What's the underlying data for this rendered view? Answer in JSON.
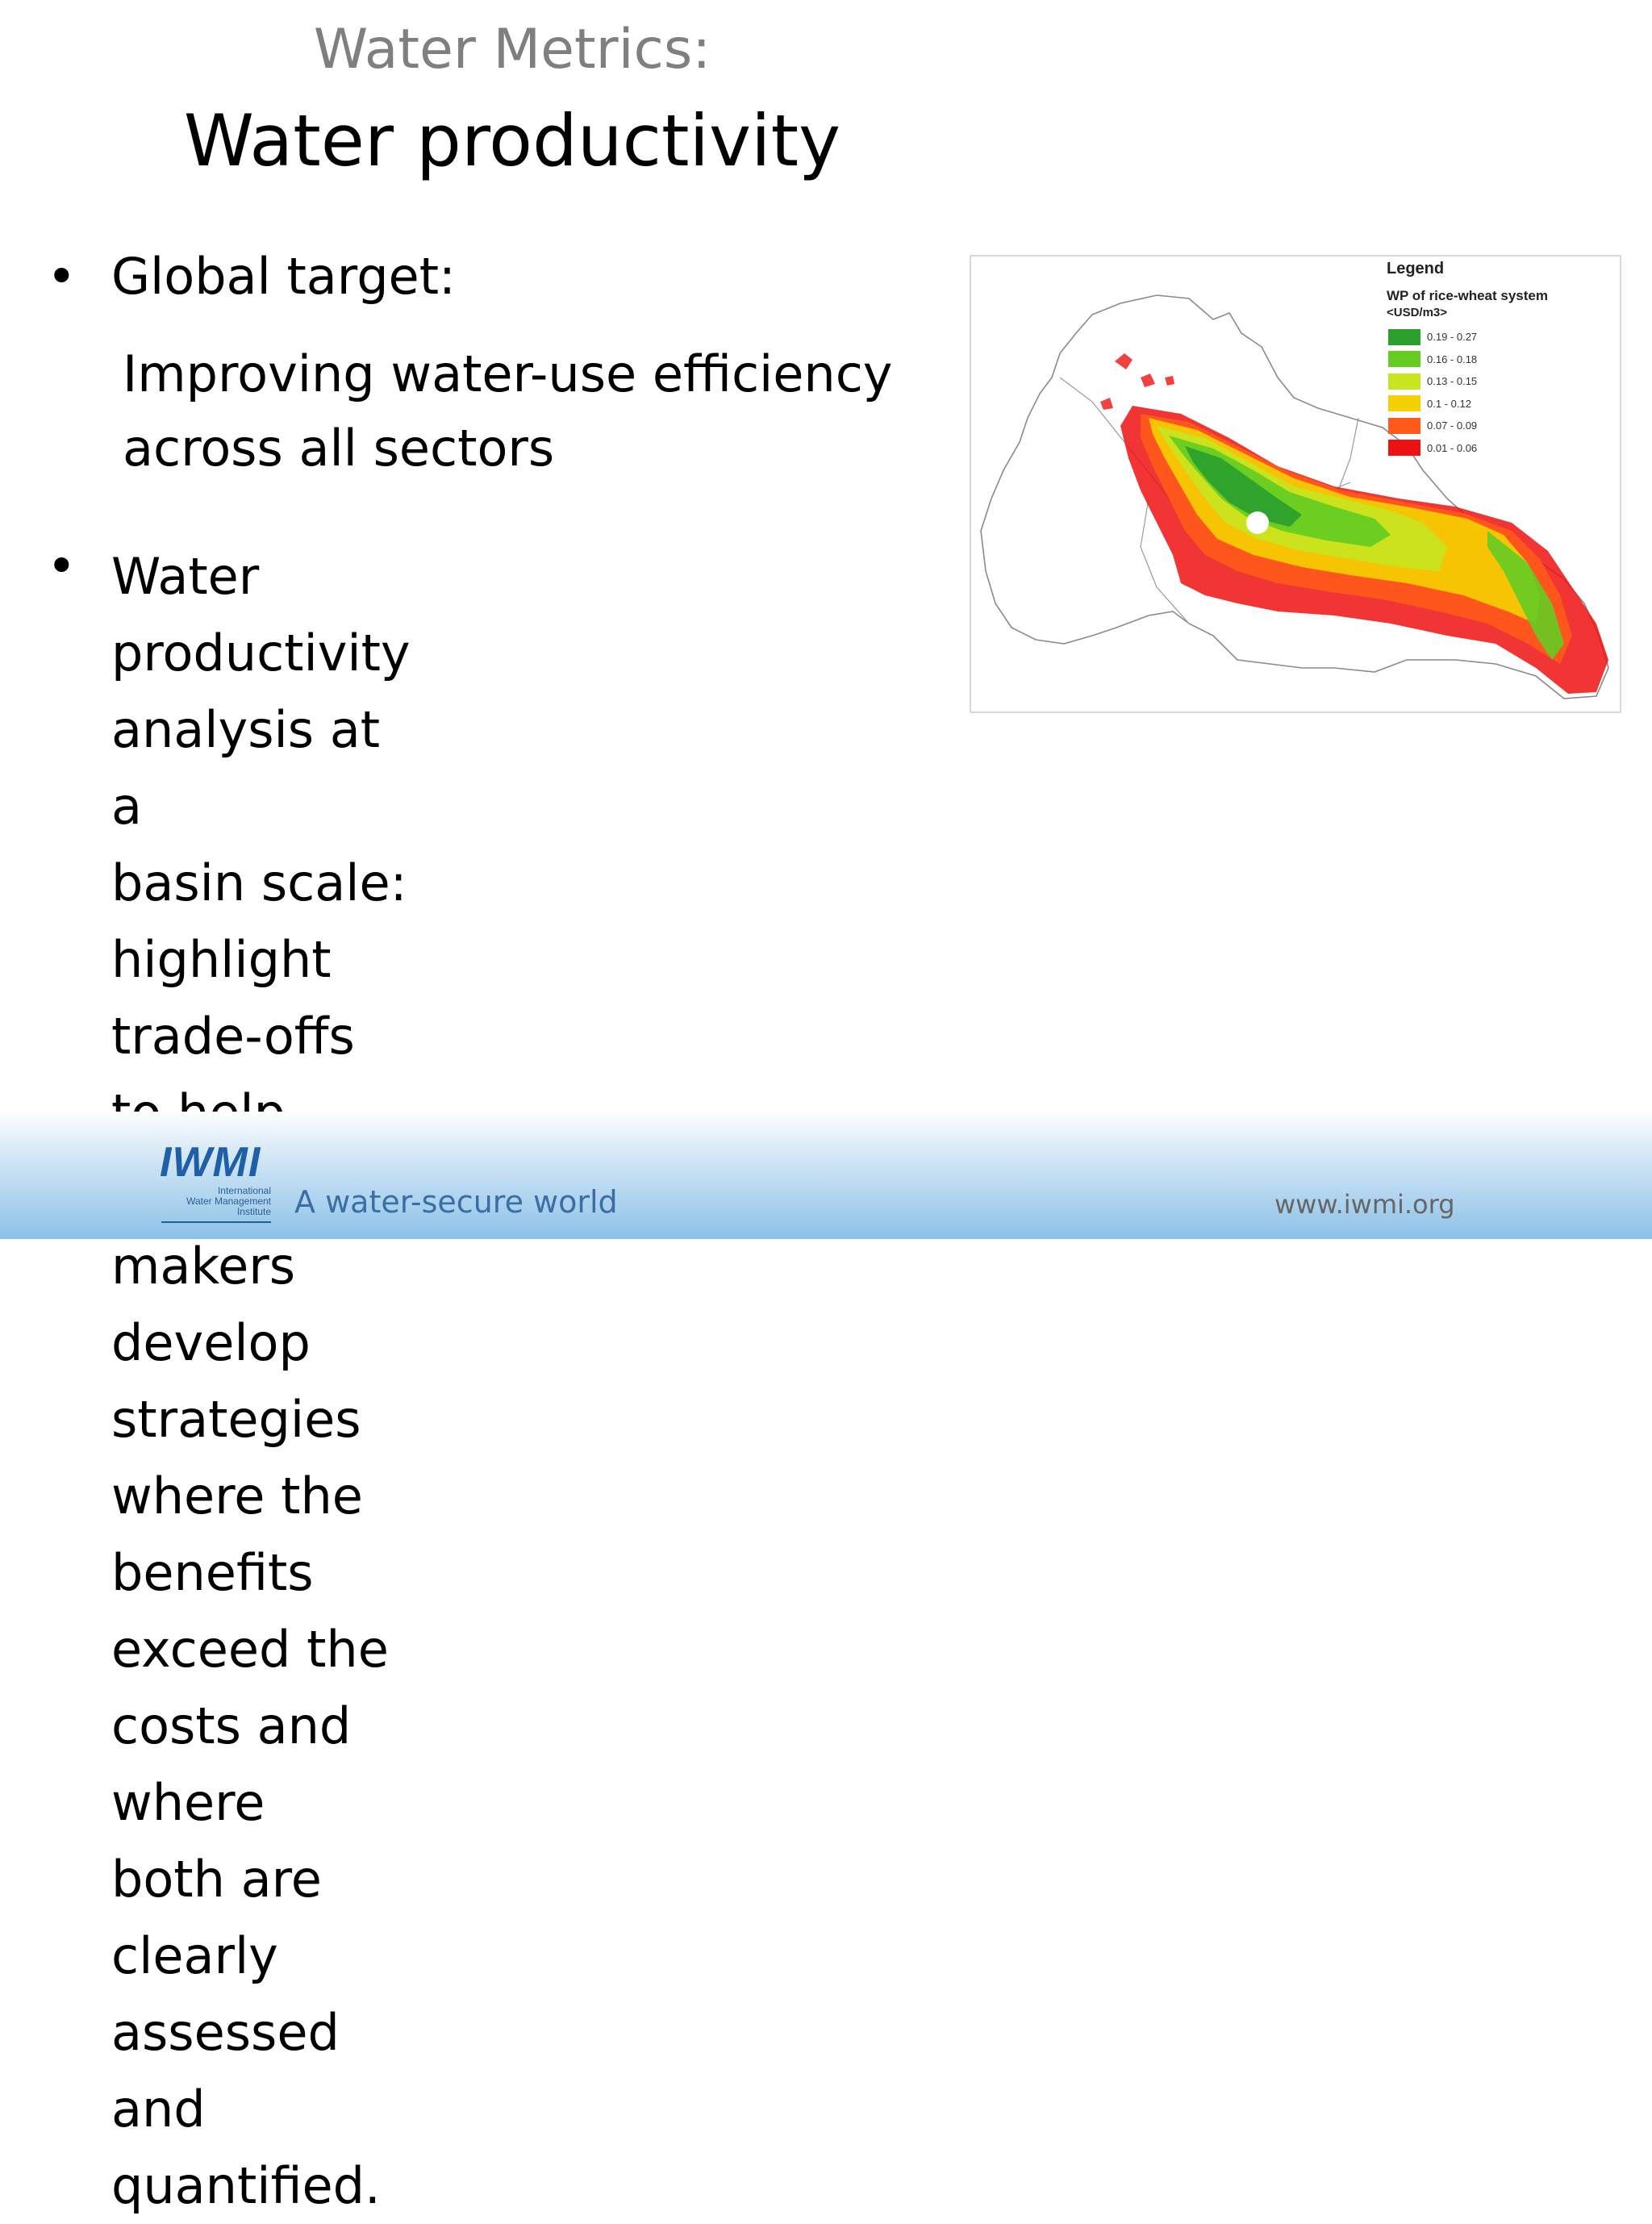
{
  "slide": {
    "supertitle": "Water Metrics:",
    "title": "Water productivity",
    "bullets": [
      {
        "text": "Global target:",
        "subtext": "Improving water-use efficiency\nacross all sectors"
      },
      {
        "text": "Water productivity analysis at a\nbasin scale:  highlight trade-offs\nto help decision makers develop\nstrategies where the benefits\nexceed the costs and where\nboth are clearly assessed and\nquantified."
      }
    ],
    "bullet_glyph": "•"
  },
  "map": {
    "legend": {
      "title": "Legend",
      "subtitle": "WP of rice-wheat system",
      "units": "<USD/m3>",
      "classes": [
        {
          "label": "0.19 - 0.27",
          "color": "#2ca02c"
        },
        {
          "label": "0.16 - 0.18",
          "color": "#66cc22"
        },
        {
          "label": "0.13 - 0.15",
          "color": "#c8e620"
        },
        {
          "label": "0.1 - 0.12",
          "color": "#f5d000"
        },
        {
          "label": "0.07 - 0.09",
          "color": "#ff5a1a"
        },
        {
          "label": "0.01 - 0.06",
          "color": "#ee1111"
        }
      ]
    }
  },
  "footer": {
    "logo_mark": "IWMI",
    "logo_name": "International\nWater Management\nInstitute",
    "tagline": "A water-secure world",
    "website": "www.iwmi.org"
  },
  "colors": {
    "supertitle": "#7f7f7f",
    "footer_blue": "#8cc2e8",
    "logo_blue": "#1f5fa8"
  }
}
